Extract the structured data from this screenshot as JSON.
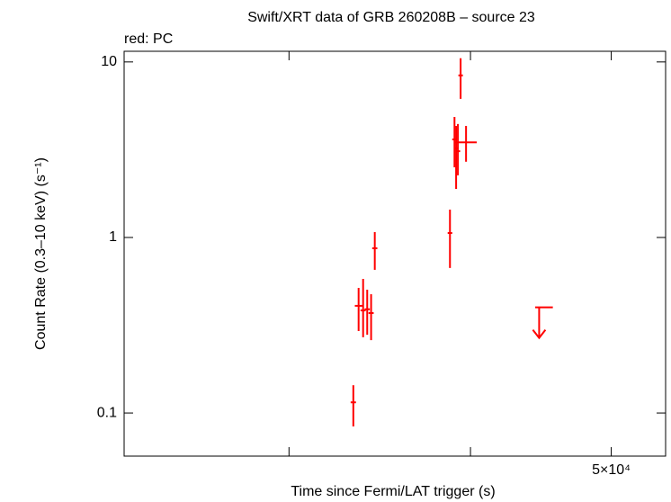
{
  "chart_data": {
    "type": "errorbar",
    "title": "Swift/XRT data of GRB 260208B – source 23",
    "subtitle": "red: PC",
    "x_label": "Time since Fermi/LAT trigger (s)",
    "y_label": "Count Rate (0.3–10 keV) (s⁻¹)",
    "x_log": true,
    "y_log": true,
    "xlim": [
      23100,
      54500
    ],
    "ylim": [
      0.0568,
      11.5
    ],
    "xticks": [
      {
        "value": 30000,
        "label": null
      },
      {
        "value": 40000,
        "label": null
      },
      {
        "value": 50000,
        "label": "5×10⁴"
      }
    ],
    "yticks": [
      0.1,
      1,
      10
    ],
    "series": [
      {
        "name": "PC",
        "color": "#ff0000",
        "x": [
          33220,
          33500,
          33740,
          33960,
          34170,
          34370,
          38720,
          39000,
          39100,
          39210,
          39380,
          39720
        ],
        "x_low": [
          33080,
          33300,
          33600,
          33820,
          34030,
          34230,
          38580,
          38860,
          38960,
          39070,
          39240,
          39040
        ],
        "x_high": [
          33360,
          33700,
          33880,
          34100,
          34310,
          34510,
          38860,
          39140,
          39240,
          39350,
          39520,
          40400
        ],
        "y": [
          0.115,
          0.408,
          0.384,
          0.39,
          0.371,
          0.868,
          1.06,
          3.62,
          3.22,
          3.1,
          8.38,
          3.48
        ],
        "y_low": [
          0.0838,
          0.293,
          0.27,
          0.279,
          0.26,
          0.654,
          0.67,
          2.51,
          1.89,
          2.26,
          6.16,
          2.7
        ],
        "y_high": [
          0.144,
          0.516,
          0.581,
          0.504,
          0.475,
          1.073,
          1.44,
          4.86,
          4.32,
          4.43,
          10.5,
          4.32
        ]
      }
    ],
    "upper_limits": {
      "color": "#ff0000",
      "x": [
        44600
      ],
      "x_low": [
        44320
      ],
      "x_high": [
        45580
      ],
      "y": [
        0.4
      ]
    }
  }
}
